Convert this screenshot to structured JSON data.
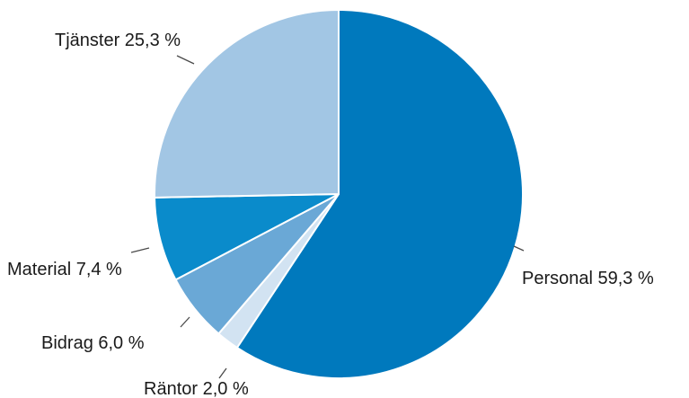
{
  "chart_data": {
    "type": "pie",
    "start": "12 o'clock",
    "direction": "clockwise",
    "slices": [
      {
        "name": "Personal",
        "value": 59.3,
        "label": "Personal 59,3 %",
        "color": "#0079BD"
      },
      {
        "name": "Räntor",
        "value": 2.0,
        "label": "Räntor 2,0 %",
        "color": "#D2E3F2"
      },
      {
        "name": "Bidrag",
        "value": 6.0,
        "label": "Bidrag 6,0 %",
        "color": "#6AA8D6"
      },
      {
        "name": "Material",
        "value": 7.4,
        "label": "Material 7,4 %",
        "color": "#0A8BCB"
      },
      {
        "name": "Tjänster",
        "value": 25.3,
        "label": "Tjänster 25,3 %",
        "color": "#A2C6E4"
      }
    ]
  }
}
